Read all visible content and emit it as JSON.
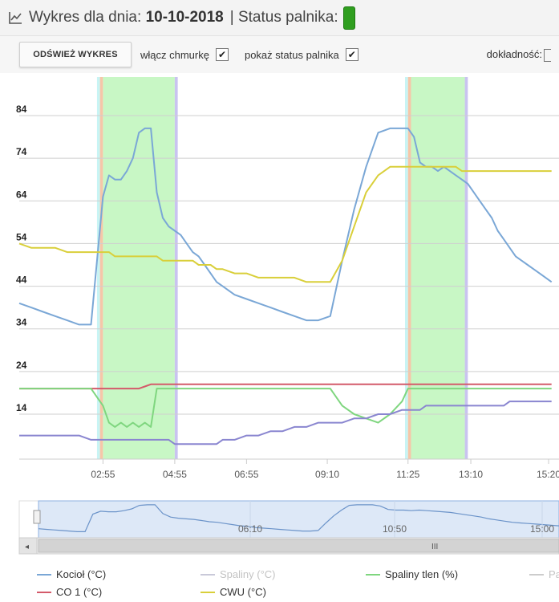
{
  "header": {
    "title_prefix": "Wykres dla dnia:",
    "date": "10-10-2018",
    "status_label": "| Status palnika:",
    "status_color": "#2f9e1f"
  },
  "toolbar": {
    "refresh_label": "ODŚWIEŻ WYKRES",
    "cloud_label": "włącz chmurkę",
    "cloud_checked": true,
    "status_toggle_label": "pokaż status palnika",
    "status_toggle_checked": true,
    "accuracy_label": "dokładność:"
  },
  "navigator": {
    "tick_labels": [
      "06:10",
      "10:50",
      "15:00"
    ],
    "scrollbar_grip": "III"
  },
  "legend": [
    {
      "label": "Kocioł (°C)",
      "color": "#7aa7d6",
      "disabled": false
    },
    {
      "label": "Spaliny (°C)",
      "color": "#c9c9d9",
      "disabled": true
    },
    {
      "label": "Spaliny tlen (%)",
      "color": "#7fd67f",
      "disabled": false
    },
    {
      "label": "Pa",
      "color": "#cccccc",
      "disabled": true
    },
    {
      "label": "CO 1 (°C)",
      "color": "#d45a6a",
      "disabled": false
    },
    {
      "label": "CWU (°C)",
      "color": "#d9cf3a",
      "disabled": false
    }
  ],
  "chart_data": {
    "type": "line",
    "x": [
      "00:35",
      "00:55",
      "01:15",
      "01:35",
      "01:55",
      "02:15",
      "02:35",
      "02:55",
      "03:05",
      "03:15",
      "03:25",
      "03:35",
      "03:45",
      "03:55",
      "04:05",
      "04:15",
      "04:25",
      "04:35",
      "04:45",
      "04:55",
      "05:05",
      "05:15",
      "05:25",
      "05:35",
      "05:45",
      "05:55",
      "06:05",
      "06:15",
      "06:35",
      "06:55",
      "07:15",
      "07:35",
      "07:55",
      "08:15",
      "08:35",
      "08:55",
      "09:15",
      "09:35",
      "09:55",
      "10:15",
      "10:35",
      "10:55",
      "11:15",
      "11:25",
      "11:35",
      "11:45",
      "11:55",
      "12:05",
      "12:15",
      "12:25",
      "12:35",
      "12:45",
      "12:55",
      "13:05",
      "13:15",
      "13:25",
      "13:35",
      "13:45",
      "13:55",
      "14:05",
      "14:15",
      "14:25",
      "14:35",
      "14:45",
      "14:55",
      "15:05",
      "15:15",
      "15:25"
    ],
    "x_tick_labels": [
      "02:55",
      "04:55",
      "06:55",
      "09:10",
      "11:25",
      "13:10",
      "15:20"
    ],
    "y_tick_labels": [
      "14",
      "24",
      "34",
      "44",
      "54",
      "64",
      "74",
      "84"
    ],
    "ylim": [
      4,
      94
    ],
    "burner_periods": [
      {
        "phase": "start",
        "from": "02:45",
        "to": "02:50",
        "color": "#c8f4f4"
      },
      {
        "phase": "ignition",
        "from": "02:50",
        "to": "02:55",
        "color": "#f6c6a8"
      },
      {
        "phase": "work",
        "from": "02:55",
        "to": "04:55",
        "color": "#c8f7c5"
      },
      {
        "phase": "extinguish",
        "from": "04:55",
        "to": "05:00",
        "color": "#c9c3f0"
      },
      {
        "phase": "start",
        "from": "11:20",
        "to": "11:25",
        "color": "#c8f4f4"
      },
      {
        "phase": "ignition",
        "from": "11:25",
        "to": "11:30",
        "color": "#f6c6a8"
      },
      {
        "phase": "work",
        "from": "11:30",
        "to": "13:00",
        "color": "#c8f7c5"
      },
      {
        "phase": "extinguish",
        "from": "13:00",
        "to": "13:05",
        "color": "#c9c3f0"
      }
    ],
    "series": [
      {
        "name": "Kocioł (°C)",
        "color": "#7aa7d6",
        "values": [
          40,
          39,
          38,
          37,
          36,
          35,
          35,
          65,
          70,
          69,
          69,
          71,
          74,
          80,
          81,
          81,
          66,
          60,
          58,
          57,
          56,
          54,
          52,
          51,
          49,
          47,
          45,
          44,
          42,
          41,
          40,
          39,
          38,
          37,
          36,
          36,
          37,
          50,
          62,
          72,
          80,
          81,
          81,
          81,
          79,
          73,
          72,
          72,
          71,
          72,
          71,
          70,
          69,
          68,
          66,
          64,
          62,
          60,
          57,
          55,
          53,
          51,
          50,
          49,
          48,
          47,
          46,
          45
        ]
      },
      {
        "name": "CWU (°C)",
        "color": "#d9cf3a",
        "values": [
          54,
          53,
          53,
          53,
          52,
          52,
          52,
          52,
          52,
          51,
          51,
          51,
          51,
          51,
          51,
          51,
          51,
          50,
          50,
          50,
          50,
          50,
          50,
          49,
          49,
          49,
          48,
          48,
          47,
          47,
          46,
          46,
          46,
          46,
          45,
          45,
          45,
          50,
          58,
          66,
          70,
          72,
          72,
          72,
          72,
          72,
          72,
          72,
          72,
          72,
          72,
          72,
          71,
          71,
          71,
          71,
          71,
          71,
          71,
          71,
          71,
          71,
          71,
          71,
          71,
          71,
          71,
          71
        ]
      },
      {
        "name": "CO 1 (°C)",
        "color": "#d45a6a",
        "values": [
          20,
          20,
          20,
          20,
          20,
          20,
          20,
          20,
          20,
          20,
          20,
          20,
          20,
          20,
          20.5,
          21,
          21,
          21,
          21,
          21,
          21,
          21,
          21,
          21,
          21,
          21,
          21,
          21,
          21,
          21,
          21,
          21,
          21,
          21,
          21,
          21,
          21,
          21,
          21,
          21,
          21,
          21,
          21,
          21,
          21,
          21,
          21,
          21,
          21,
          21,
          21,
          21,
          21,
          21,
          21,
          21,
          21,
          21,
          21,
          21,
          21,
          21,
          21,
          21,
          21,
          21,
          21,
          21
        ]
      },
      {
        "name": "Spaliny tlen (%)",
        "color": "#7fd67f",
        "values": [
          20,
          20,
          20,
          20,
          20,
          20,
          20,
          16,
          12,
          11,
          12,
          11,
          12,
          11,
          12,
          11,
          20,
          20,
          20,
          20,
          20,
          20,
          20,
          20,
          20,
          20,
          20,
          20,
          20,
          20,
          20,
          20,
          20,
          20,
          20,
          20,
          20,
          16,
          14,
          13,
          12,
          14,
          17,
          20,
          20,
          20,
          20,
          20,
          20,
          20,
          20,
          20,
          20,
          20,
          20,
          20,
          20,
          20,
          20,
          20,
          20,
          20,
          20,
          20,
          20,
          20,
          20,
          20
        ]
      },
      {
        "name": "Spaliny (°C)",
        "color": "#8a86d0",
        "values": [
          9,
          9,
          9,
          9,
          9,
          9,
          8,
          8,
          8,
          8,
          8,
          8,
          8,
          8,
          8,
          8,
          8,
          8,
          8,
          7,
          7,
          7,
          7,
          7,
          7,
          7,
          7,
          8,
          8,
          9,
          9,
          10,
          10,
          11,
          11,
          12,
          12,
          12,
          13,
          13,
          14,
          14,
          15,
          15,
          15,
          15,
          16,
          16,
          16,
          16,
          16,
          16,
          16,
          16,
          16,
          16,
          16,
          16,
          16,
          16,
          17,
          17,
          17,
          17,
          17,
          17,
          17,
          17
        ]
      }
    ]
  }
}
